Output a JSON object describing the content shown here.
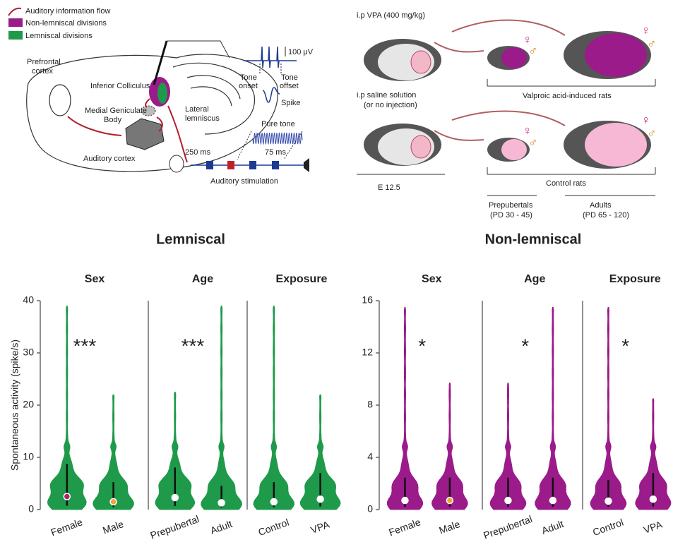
{
  "figure": {
    "legend": [
      "Auditory information flow",
      "Non-lemniscal divisions",
      "Lemniscal divisions"
    ],
    "brain_labels": [
      "Prefrontal",
      "cortex",
      "Inferior Colliculus",
      "Medial Geniculate",
      "Body",
      "Lateral",
      "lemniscus",
      "Auditory cortex"
    ],
    "recording_labels": [
      "100 μV",
      "Tone",
      "onset",
      "Tone",
      "offset",
      "Spike",
      "Pure tone",
      "250 ms",
      "75 ms",
      "Auditory stimulation"
    ],
    "design_labels": [
      "i.p VPA (400 mg/kg)",
      "i.p saline solution",
      "(or no injection)",
      "Valproic acid-induced rats",
      "Control rats",
      "E 12.5",
      "Prepubertals",
      "(PD 30 - 45)",
      "Adults",
      "(PD 65 - 120)"
    ],
    "sex_symbols": [
      "♀",
      "♂"
    ]
  },
  "chart_data": [
    {
      "type": "violin",
      "title": "Lemniscal",
      "ylabel": "Spontaneous activity (spike/s)",
      "ylim": [
        0,
        40
      ],
      "yticks": [
        0,
        10,
        20,
        30,
        40
      ],
      "color": "#1e9a4a",
      "panels": [
        {
          "title": "Sex",
          "annotation": "***",
          "categories": [
            "Female",
            "Male"
          ],
          "max": [
            39,
            22
          ],
          "median": [
            2.5,
            1.5
          ],
          "median_colors": [
            "#b0226e",
            "#f2a33a"
          ]
        },
        {
          "title": "Age",
          "annotation": "***",
          "categories": [
            "Prepubertal",
            "Adult"
          ],
          "max": [
            22.5,
            39
          ],
          "median": [
            2.3,
            1.3
          ],
          "median_colors": [
            "#ffffff",
            "#ffffff"
          ]
        },
        {
          "title": "Exposure",
          "categories": [
            "Control",
            "VPA"
          ],
          "max": [
            39,
            22
          ],
          "median": [
            1.5,
            2.0
          ],
          "median_colors": [
            "#ffffff",
            "#ffffff"
          ]
        }
      ]
    },
    {
      "type": "violin",
      "title": "Non-lemniscal",
      "ylim": [
        0,
        16
      ],
      "yticks": [
        0,
        4,
        8,
        12,
        16
      ],
      "color": "#9b1b8a",
      "panels": [
        {
          "title": "Sex",
          "annotation": "*",
          "categories": [
            "Female",
            "Male"
          ],
          "max": [
            15.5,
            9.7
          ],
          "median": [
            0.7,
            0.7
          ],
          "median_colors": [
            "#ffffff",
            "#f2a33a"
          ]
        },
        {
          "title": "Age",
          "annotation": "*",
          "categories": [
            "Prepubertal",
            "Adult"
          ],
          "max": [
            9.7,
            15.5
          ],
          "median": [
            0.7,
            0.7
          ],
          "median_colors": [
            "#ffffff",
            "#ffffff"
          ]
        },
        {
          "title": "Exposure",
          "annotation": "*",
          "categories": [
            "Control",
            "VPA"
          ],
          "max": [
            15.5,
            8.5
          ],
          "median": [
            0.65,
            0.8
          ],
          "median_colors": [
            "#ffffff",
            "#ffffff"
          ]
        }
      ]
    }
  ]
}
